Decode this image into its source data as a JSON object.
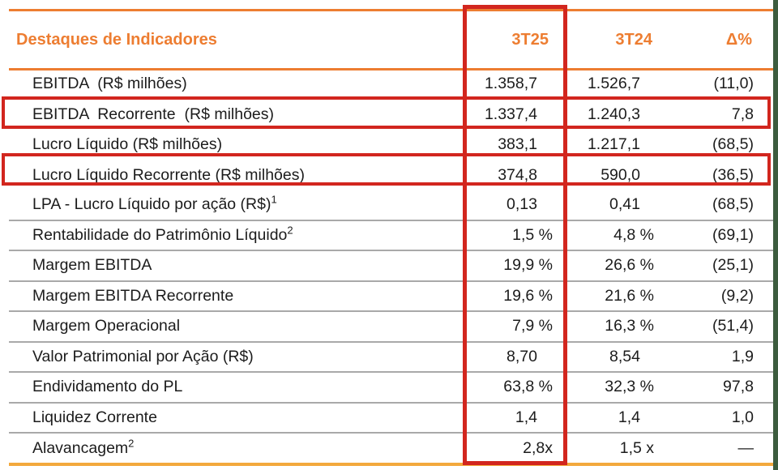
{
  "title": "Destaques de Indicadores",
  "columns": [
    "3T25",
    "3T24",
    "Δ%"
  ],
  "rows": [
    {
      "label": "EBITDA  (R$ milhões)",
      "t25": "1.358,7",
      "t24": "1.526,7",
      "delta": "(11,0)",
      "highlighted": false
    },
    {
      "label": "EBITDA  Recorrente  (R$ milhões)",
      "t25": "1.337,4",
      "t24": "1.240,3",
      "delta": "7,8",
      "highlighted": true
    },
    {
      "label": "Lucro Líquido (R$ milhões)",
      "t25": "383,1",
      "t24": "1.217,1",
      "delta": "(68,5)",
      "highlighted": false
    },
    {
      "label": "Lucro Líquido Recorrente (R$ milhões)",
      "t25": "374,8",
      "t24": "590,0",
      "delta": "(36,5)",
      "highlighted": true
    },
    {
      "label": "LPA - Lucro Líquido por ação (R$)¹",
      "t25": "0,13",
      "t24": "0,41",
      "delta": "(68,5)",
      "highlighted": false
    },
    {
      "label": "Rentabilidade do Patrimônio Líquido²",
      "t25": "1,5 %",
      "t24": "4,8 %",
      "delta": "(69,1)",
      "highlighted": false
    },
    {
      "label": "Margem EBITDA",
      "t25": "19,9 %",
      "t24": "26,6 %",
      "delta": "(25,1)",
      "highlighted": false
    },
    {
      "label": "Margem EBITDA Recorrente",
      "t25": "19,6 %",
      "t24": "21,6 %",
      "delta": "(9,2)",
      "highlighted": false
    },
    {
      "label": "Margem Operacional",
      "t25": "7,9 %",
      "t24": "16,3 %",
      "delta": "(51,4)",
      "highlighted": false
    },
    {
      "label": "Valor Patrimonial por Ação (R$)",
      "t25": "8,70",
      "t24": "8,54",
      "delta": "1,9",
      "highlighted": false
    },
    {
      "label": "Endividamento do PL",
      "t25": "63,8 %",
      "t24": "32,3 %",
      "delta": "97,8",
      "highlighted": false
    },
    {
      "label": "Liquidez Corrente",
      "t25": "1,4",
      "t24": "1,4",
      "delta": "1,0",
      "highlighted": false
    },
    {
      "label": "Alavancagem²",
      "t25": "2,8x",
      "t24": "1,5 x",
      "delta": "—",
      "highlighted": false
    }
  ],
  "highlights": {
    "column": "3T25",
    "rows": [
      "EBITDA  Recorrente  (R$ milhões)",
      "Lucro Líquido Recorrente (R$ milhões)"
    ]
  },
  "colors": {
    "orange": "#ed7d31",
    "red": "#d2261e",
    "gold": "#f3a93c",
    "gray": "#a9a9a9",
    "green": "#3c5c3e",
    "text": "#1c1c1c"
  }
}
